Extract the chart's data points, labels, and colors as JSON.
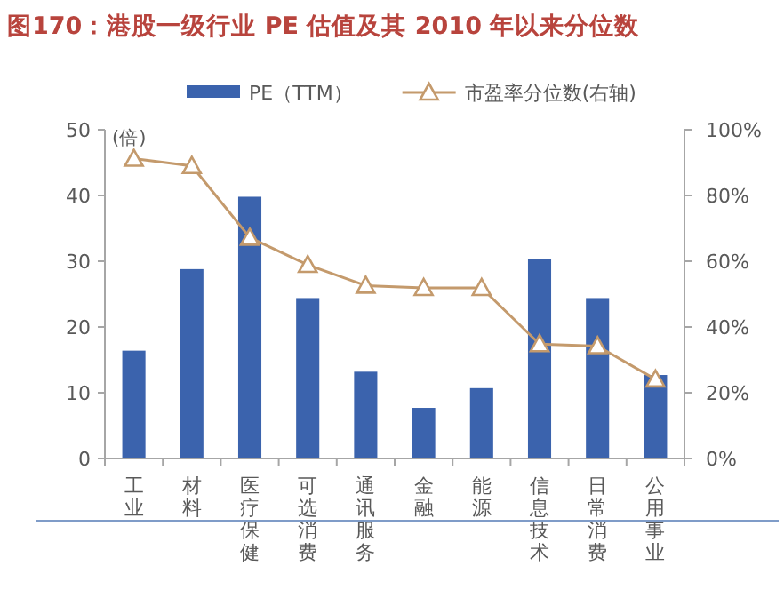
{
  "chart_data": {
    "type": "bar",
    "title": "图170：港股一级行业 PE 估值及其 2010 年以来分位数",
    "ylabel": "(倍)",
    "categories": [
      "工业",
      "材料",
      "医疗保健",
      "可选消费",
      "通讯服务",
      "金融",
      "能源",
      "信息技术",
      "日常消费",
      "公用事业"
    ],
    "series": [
      {
        "name": "PE（TTM）",
        "color": "#3b63ad",
        "values": [
          16.4,
          28.8,
          39.8,
          24.4,
          13.2,
          7.7,
          10.7,
          30.3,
          24.4,
          12.7
        ]
      },
      {
        "name": "市盈率分位数(右轴)",
        "type": "line",
        "axis": "y2",
        "color": "#c49a6c",
        "marker": "triangle",
        "values": [
          91.2,
          89.0,
          67.2,
          58.9,
          52.6,
          51.9,
          51.9,
          34.8,
          34.2,
          24.1
        ]
      }
    ],
    "ylim": [
      0,
      50
    ],
    "yticks": [
      0,
      10,
      20,
      30,
      40,
      50
    ],
    "y2lim": [
      0,
      100
    ],
    "y2ticks": [
      {
        "value": 0,
        "label": "0%"
      },
      {
        "value": 20,
        "label": "20%"
      },
      {
        "value": 40,
        "label": "40%"
      },
      {
        "value": 60,
        "label": "60%"
      },
      {
        "value": 80,
        "label": "80%"
      },
      {
        "value": 100,
        "label": "100%"
      }
    ],
    "legend": "top"
  }
}
